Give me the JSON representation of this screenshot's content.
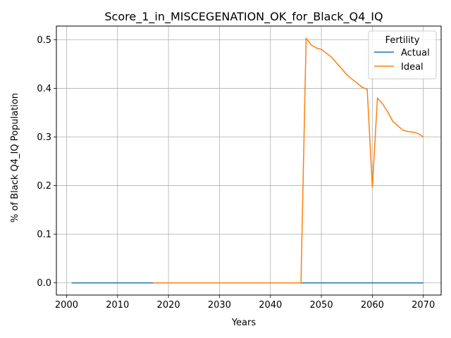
{
  "chart_data": {
    "type": "line",
    "title": "Score_1_in_MISCEGENATION_OK_for_Black_Q4_IQ",
    "xlabel": "Years",
    "ylabel": "% of Black Q4_IQ Population",
    "xlim": [
      1998,
      2073.5
    ],
    "ylim": [
      -0.025,
      0.528
    ],
    "xticks": [
      "2000",
      "2010",
      "2020",
      "2030",
      "2040",
      "2050",
      "2060",
      "2070"
    ],
    "yticks": [
      "0.0",
      "0.1",
      "0.2",
      "0.3",
      "0.4",
      "0.5"
    ],
    "grid": true,
    "legend": {
      "title": "Fertility",
      "placement": "top-right"
    },
    "series": [
      {
        "name": "Actual",
        "color": "#1f77b4",
        "x": [
          2001,
          2070
        ],
        "y": [
          0,
          0
        ]
      },
      {
        "name": "Ideal",
        "color": "#ff7f0e",
        "x": [
          2017,
          2046,
          2047,
          2048,
          2049,
          2050,
          2051,
          2052,
          2053,
          2054,
          2055,
          2056,
          2057,
          2058,
          2059,
          2060,
          2061,
          2062,
          2063,
          2064,
          2065,
          2066,
          2067,
          2068,
          2069,
          2070
        ],
        "y": [
          0,
          0,
          0.503,
          0.489,
          0.483,
          0.48,
          0.472,
          0.464,
          0.452,
          0.44,
          0.428,
          0.419,
          0.411,
          0.402,
          0.398,
          0.196,
          0.38,
          0.368,
          0.352,
          0.332,
          0.323,
          0.314,
          0.311,
          0.31,
          0.307,
          0.3
        ]
      }
    ]
  }
}
